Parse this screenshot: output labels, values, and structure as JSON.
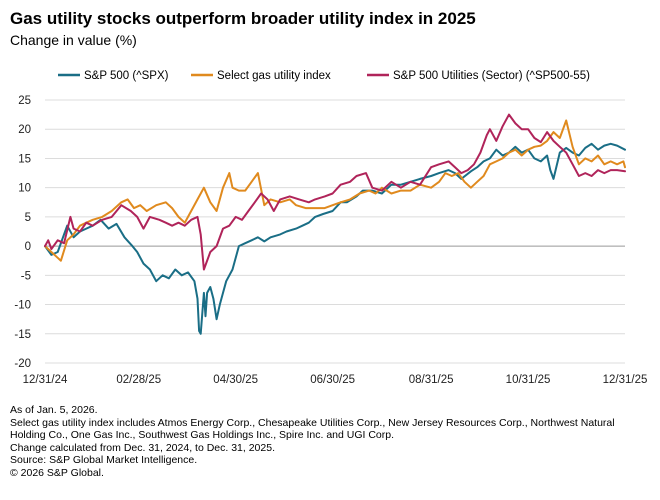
{
  "title": "Gas utility stocks outperform broader utility index in 2025",
  "subtitle": "Change in value (%)",
  "notes": [
    "As of Jan. 5, 2026.",
    "Select gas utility index includes Atmos Energy Corp., Chesapeake Utilities Corp., New Jersey Resources Corp., Northwest Natural Holding Co., One Gas Inc., Southwest Gas Holdings Inc., Spire Inc. and UGI Corp.",
    "Change calculated from Dec. 31, 2024, to Dec. 31, 2025.",
    "Source: S&P Global Market Intelligence.",
    "© 2026 S&P Global."
  ],
  "chart_data": {
    "type": "line",
    "title": "Gas utility stocks outperform broader utility index in 2025",
    "ylabel": "Change in value (%)",
    "xlabel": "",
    "ylim": [
      -20,
      25
    ],
    "yticks": [
      -20,
      -15,
      -10,
      -5,
      0,
      5,
      10,
      15,
      20,
      25
    ],
    "xlim": [
      0,
      365
    ],
    "xticks": [
      {
        "day": 0,
        "label": "12/31/24"
      },
      {
        "day": 59,
        "label": "02/28/25"
      },
      {
        "day": 120,
        "label": "04/30/25"
      },
      {
        "day": 181,
        "label": "06/30/25"
      },
      {
        "day": 243,
        "label": "08/31/25"
      },
      {
        "day": 304,
        "label": "10/31/25"
      },
      {
        "day": 365,
        "label": "12/31/25"
      }
    ],
    "grid": true,
    "legend_position": "top",
    "series": [
      {
        "name": "S&P 500 (^SPX)",
        "color": "#1a6e86",
        "x": [
          0,
          4,
          8,
          14,
          18,
          22,
          26,
          30,
          35,
          40,
          45,
          50,
          55,
          58,
          62,
          66,
          70,
          74,
          78,
          82,
          86,
          90,
          94,
          96,
          97,
          98,
          100,
          101,
          102,
          104,
          106,
          108,
          110,
          112,
          114,
          118,
          122,
          126,
          130,
          134,
          138,
          142,
          148,
          152,
          158,
          162,
          166,
          170,
          175,
          181,
          186,
          190,
          196,
          200,
          206,
          212,
          218,
          224,
          230,
          236,
          243,
          248,
          254,
          258,
          262,
          268,
          272,
          276,
          280,
          284,
          288,
          292,
          296,
          300,
          304,
          308,
          312,
          316,
          318,
          320,
          324,
          328,
          332,
          336,
          340,
          344,
          348,
          352,
          356,
          360,
          365
        ],
        "y": [
          0,
          -1.5,
          -1,
          3.5,
          1.5,
          2.5,
          3,
          3.5,
          4.5,
          3,
          3.8,
          1.5,
          0,
          -1,
          -3,
          -4,
          -6,
          -5,
          -5.5,
          -4,
          -5,
          -4.5,
          -6,
          -9,
          -14.5,
          -15,
          -8,
          -12,
          -8,
          -7,
          -9,
          -12.5,
          -10,
          -8,
          -6,
          -4,
          0,
          0.5,
          1,
          1.5,
          0.8,
          1.5,
          2,
          2.5,
          3,
          3.5,
          4,
          5,
          5.5,
          6,
          7.5,
          7.5,
          8.5,
          9.5,
          9.5,
          9,
          10.5,
          10.5,
          11,
          11.5,
          12,
          12.5,
          13,
          12.5,
          11.5,
          12.8,
          13.5,
          14.5,
          15,
          16.5,
          15.5,
          16,
          17,
          16,
          16.5,
          15,
          14.5,
          15.5,
          13,
          11.5,
          16,
          16.8,
          16,
          15.5,
          16.8,
          17.5,
          16.5,
          17.2,
          17.5,
          17.2,
          16.5
        ]
      },
      {
        "name": "Select gas utility index",
        "color": "#e08a1e",
        "x": [
          0,
          4,
          8,
          10,
          14,
          18,
          22,
          26,
          30,
          36,
          42,
          48,
          52,
          56,
          60,
          64,
          70,
          76,
          80,
          84,
          88,
          90,
          96,
          100,
          104,
          108,
          112,
          116,
          118,
          122,
          126,
          130,
          134,
          138,
          142,
          148,
          154,
          158,
          164,
          170,
          176,
          181,
          186,
          192,
          198,
          204,
          208,
          212,
          218,
          224,
          230,
          236,
          243,
          248,
          252,
          256,
          260,
          264,
          268,
          272,
          276,
          280,
          284,
          288,
          292,
          296,
          300,
          304,
          308,
          312,
          316,
          320,
          324,
          328,
          332,
          336,
          340,
          344,
          348,
          352,
          356,
          360,
          364,
          365
        ],
        "y": [
          0,
          -1,
          -2,
          -2.5,
          1,
          2,
          3.5,
          4,
          4.5,
          5,
          6,
          7.5,
          8,
          6.5,
          7,
          6,
          7,
          7.5,
          6.5,
          5,
          4,
          5,
          8,
          10,
          7.5,
          6,
          10,
          12.5,
          10,
          9.5,
          9.5,
          11,
          12.5,
          7,
          8,
          7.5,
          8,
          7,
          6.5,
          6.5,
          6.5,
          7,
          7.5,
          8,
          9,
          9.5,
          9,
          10,
          9,
          9.5,
          9.5,
          10.5,
          10,
          11,
          12.5,
          12,
          12.5,
          11,
          10,
          11,
          12,
          14,
          14.5,
          15,
          16,
          16.5,
          15.5,
          16.5,
          17,
          17.2,
          18,
          19.5,
          18.5,
          21.5,
          17,
          14,
          15,
          14.5,
          15.5,
          14,
          14.5,
          14,
          14.5,
          13.5
        ]
      },
      {
        "name": "S&P 500 Utilities (Sector) (^SP500-55)",
        "color": "#b0245a",
        "x": [
          0,
          2,
          4,
          8,
          12,
          16,
          18,
          22,
          26,
          30,
          36,
          42,
          48,
          54,
          58,
          62,
          66,
          72,
          76,
          80,
          84,
          88,
          92,
          96,
          98,
          100,
          104,
          108,
          112,
          116,
          120,
          124,
          128,
          132,
          136,
          140,
          144,
          148,
          154,
          160,
          166,
          170,
          176,
          181,
          186,
          192,
          196,
          202,
          206,
          212,
          218,
          224,
          230,
          236,
          243,
          248,
          254,
          258,
          262,
          266,
          270,
          274,
          278,
          280,
          284,
          288,
          292,
          296,
          300,
          304,
          308,
          312,
          316,
          320,
          324,
          328,
          332,
          336,
          340,
          344,
          348,
          352,
          356,
          360,
          365
        ],
        "y": [
          0,
          1,
          -0.5,
          1,
          0.5,
          5,
          3,
          2.5,
          4,
          3.5,
          4.5,
          5,
          7,
          6,
          5,
          3,
          5,
          4.5,
          4,
          3.5,
          4,
          3.5,
          4.5,
          5,
          2,
          -4,
          -1,
          0,
          3,
          3.5,
          5,
          4.5,
          6,
          7.5,
          9,
          8,
          6,
          8,
          8.5,
          8,
          7.5,
          8,
          8.5,
          9,
          10.5,
          11,
          12,
          12.5,
          10,
          9.5,
          11,
          10,
          11,
          10.5,
          13.5,
          14,
          14.5,
          13.5,
          12.5,
          13,
          14,
          16,
          19,
          20,
          18,
          20.5,
          22.5,
          21,
          20,
          20,
          18.5,
          17.8,
          19.5,
          18,
          17,
          16,
          14,
          12,
          12.5,
          12,
          13,
          12.5,
          13,
          13,
          12.8
        ]
      }
    ]
  }
}
